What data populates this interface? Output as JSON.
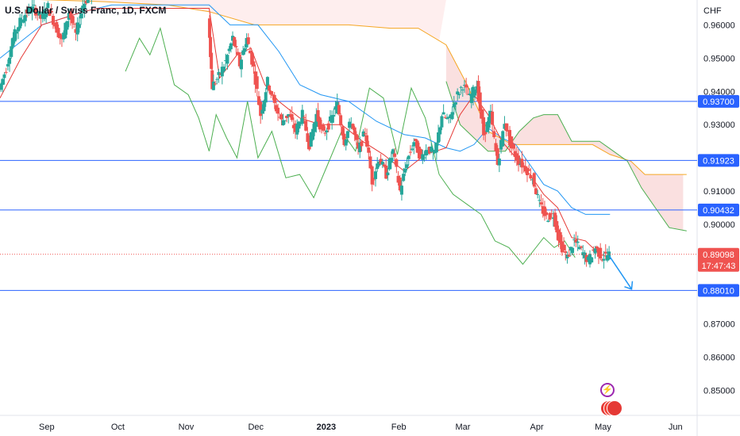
{
  "header": {
    "title": "U.S. Dollar / Swiss Franc, 1D, FXCM",
    "currency": "CHF"
  },
  "chart_data": {
    "type": "candlestick",
    "symbol": "U.S. Dollar / Swiss Franc",
    "timeframe": "1D",
    "source": "FXCM",
    "y_axis": {
      "unit": "CHF",
      "range": [
        0.8425,
        0.9675
      ],
      "ticks": [
        "0.96000",
        "0.95000",
        "0.94000",
        "0.93000",
        "0.91000",
        "0.90000",
        "0.87000",
        "0.86000",
        "0.85000"
      ]
    },
    "x_axis": {
      "ticks": [
        {
          "label": "Sep",
          "pos": 0.067
        },
        {
          "label": "Oct",
          "pos": 0.169
        },
        {
          "label": "Nov",
          "pos": 0.267
        },
        {
          "label": "Dec",
          "pos": 0.367
        },
        {
          "label": "2023",
          "pos": 0.468,
          "bold": true
        },
        {
          "label": "Feb",
          "pos": 0.572
        },
        {
          "label": "Mar",
          "pos": 0.664
        },
        {
          "label": "Apr",
          "pos": 0.77
        },
        {
          "label": "May",
          "pos": 0.865
        },
        {
          "label": "Jun",
          "pos": 0.969
        }
      ]
    },
    "horizontal_levels": [
      {
        "value": 0.937,
        "label": "0.93700"
      },
      {
        "value": 0.91923,
        "label": "0.91923"
      },
      {
        "value": 0.90432,
        "label": "0.90432"
      },
      {
        "value": 0.8801,
        "label": "0.88010"
      }
    ],
    "current_price": {
      "value": 0.89098,
      "label": "0.89098",
      "countdown": "17:47:43"
    },
    "forecast_arrow": {
      "from": [
        0.874,
        0.8905
      ],
      "to": [
        0.906,
        0.8805
      ]
    },
    "price_path": [
      [
        0.0,
        0.9405
      ],
      [
        0.01,
        0.947
      ],
      [
        0.02,
        0.956
      ],
      [
        0.03,
        0.961
      ],
      [
        0.04,
        0.964
      ],
      [
        0.05,
        0.965
      ],
      [
        0.06,
        0.962
      ],
      [
        0.07,
        0.9655
      ],
      [
        0.08,
        0.96
      ],
      [
        0.09,
        0.955
      ],
      [
        0.1,
        0.964
      ],
      [
        0.11,
        0.957
      ],
      [
        0.12,
        0.966
      ],
      [
        0.13,
        0.969
      ],
      [
        0.14,
        0.97
      ],
      [
        0.3,
        0.962
      ],
      [
        0.305,
        0.9415
      ],
      [
        0.315,
        0.9445
      ],
      [
        0.325,
        0.949
      ],
      [
        0.335,
        0.956
      ],
      [
        0.345,
        0.948
      ],
      [
        0.355,
        0.956
      ],
      [
        0.365,
        0.947
      ],
      [
        0.375,
        0.933
      ],
      [
        0.385,
        0.943
      ],
      [
        0.395,
        0.936
      ],
      [
        0.405,
        0.931
      ],
      [
        0.415,
        0.933
      ],
      [
        0.425,
        0.928
      ],
      [
        0.435,
        0.933
      ],
      [
        0.445,
        0.924
      ],
      [
        0.455,
        0.933
      ],
      [
        0.465,
        0.927
      ],
      [
        0.475,
        0.931
      ],
      [
        0.485,
        0.936
      ],
      [
        0.495,
        0.925
      ],
      [
        0.505,
        0.931
      ],
      [
        0.515,
        0.922
      ],
      [
        0.525,
        0.928
      ],
      [
        0.535,
        0.913
      ],
      [
        0.545,
        0.92
      ],
      [
        0.555,
        0.915
      ],
      [
        0.565,
        0.922
      ],
      [
        0.575,
        0.91
      ],
      [
        0.585,
        0.919
      ],
      [
        0.595,
        0.925
      ],
      [
        0.605,
        0.92
      ],
      [
        0.615,
        0.923
      ],
      [
        0.625,
        0.921
      ],
      [
        0.635,
        0.933
      ],
      [
        0.645,
        0.931
      ],
      [
        0.655,
        0.938
      ],
      [
        0.665,
        0.942
      ],
      [
        0.675,
        0.938
      ],
      [
        0.685,
        0.942
      ],
      [
        0.695,
        0.927
      ],
      [
        0.705,
        0.933
      ],
      [
        0.715,
        0.918
      ],
      [
        0.725,
        0.931
      ],
      [
        0.735,
        0.923
      ],
      [
        0.745,
        0.919
      ],
      [
        0.755,
        0.917
      ],
      [
        0.765,
        0.914
      ],
      [
        0.775,
        0.906
      ],
      [
        0.785,
        0.902
      ],
      [
        0.795,
        0.903
      ],
      [
        0.805,
        0.894
      ],
      [
        0.815,
        0.89
      ],
      [
        0.825,
        0.895
      ],
      [
        0.835,
        0.892
      ],
      [
        0.845,
        0.889
      ],
      [
        0.855,
        0.893
      ],
      [
        0.865,
        0.89
      ],
      [
        0.875,
        0.891
      ]
    ],
    "cloud": {
      "span_a": [
        [
          0.0,
          0.968
        ],
        [
          0.15,
          0.967
        ],
        [
          0.24,
          0.966
        ],
        [
          0.3,
          0.964
        ],
        [
          0.365,
          0.96
        ],
        [
          0.44,
          0.96
        ],
        [
          0.5,
          0.96
        ],
        [
          0.56,
          0.959
        ],
        [
          0.6,
          0.959
        ],
        [
          0.64,
          0.954
        ],
        [
          0.67,
          0.942
        ],
        [
          0.7,
          0.928
        ],
        [
          0.735,
          0.924
        ],
        [
          0.765,
          0.924
        ],
        [
          0.795,
          0.924
        ],
        [
          0.825,
          0.924
        ],
        [
          0.85,
          0.924
        ],
        [
          0.875,
          0.921
        ],
        [
          0.905,
          0.919
        ],
        [
          0.925,
          0.915
        ],
        [
          0.985,
          0.915
        ]
      ],
      "span_b": [
        [
          0.64,
          0.943
        ],
        [
          0.66,
          0.93
        ],
        [
          0.68,
          0.926
        ],
        [
          0.7,
          0.922
        ],
        [
          0.725,
          0.922
        ],
        [
          0.745,
          0.928
        ],
        [
          0.765,
          0.932
        ],
        [
          0.78,
          0.933
        ],
        [
          0.8,
          0.933
        ],
        [
          0.82,
          0.925
        ],
        [
          0.84,
          0.925
        ],
        [
          0.86,
          0.925
        ],
        [
          0.88,
          0.922
        ],
        [
          0.9,
          0.919
        ],
        [
          0.92,
          0.911
        ],
        [
          0.94,
          0.905
        ],
        [
          0.96,
          0.899
        ],
        [
          0.985,
          0.898
        ]
      ]
    },
    "conversion_line": [
      [
        0.0,
        0.938
      ],
      [
        0.03,
        0.95
      ],
      [
        0.06,
        0.96
      ],
      [
        0.09,
        0.962
      ],
      [
        0.12,
        0.964
      ],
      [
        0.14,
        0.965
      ],
      [
        0.3,
        0.965
      ],
      [
        0.315,
        0.944
      ],
      [
        0.34,
        0.951
      ],
      [
        0.36,
        0.953
      ],
      [
        0.38,
        0.942
      ],
      [
        0.4,
        0.937
      ],
      [
        0.43,
        0.932
      ],
      [
        0.46,
        0.93
      ],
      [
        0.49,
        0.93
      ],
      [
        0.52,
        0.925
      ],
      [
        0.55,
        0.921
      ],
      [
        0.58,
        0.916
      ],
      [
        0.61,
        0.921
      ],
      [
        0.64,
        0.923
      ],
      [
        0.66,
        0.933
      ],
      [
        0.68,
        0.939
      ],
      [
        0.7,
        0.933
      ],
      [
        0.72,
        0.925
      ],
      [
        0.74,
        0.92
      ],
      [
        0.76,
        0.915
      ],
      [
        0.78,
        0.909
      ],
      [
        0.8,
        0.905
      ],
      [
        0.82,
        0.896
      ],
      [
        0.84,
        0.895
      ],
      [
        0.86,
        0.891
      ],
      [
        0.875,
        0.89
      ]
    ],
    "base_line": [
      [
        0.0,
        0.95
      ],
      [
        0.06,
        0.96
      ],
      [
        0.12,
        0.964
      ],
      [
        0.16,
        0.966
      ],
      [
        0.3,
        0.966
      ],
      [
        0.33,
        0.96
      ],
      [
        0.37,
        0.96
      ],
      [
        0.4,
        0.952
      ],
      [
        0.43,
        0.942
      ],
      [
        0.46,
        0.939
      ],
      [
        0.5,
        0.937
      ],
      [
        0.54,
        0.931
      ],
      [
        0.58,
        0.927
      ],
      [
        0.61,
        0.926
      ],
      [
        0.64,
        0.923
      ],
      [
        0.66,
        0.922
      ],
      [
        0.68,
        0.924
      ],
      [
        0.7,
        0.929
      ],
      [
        0.72,
        0.926
      ],
      [
        0.74,
        0.924
      ],
      [
        0.76,
        0.918
      ],
      [
        0.78,
        0.912
      ],
      [
        0.8,
        0.91
      ],
      [
        0.82,
        0.905
      ],
      [
        0.84,
        0.903
      ],
      [
        0.86,
        0.903
      ],
      [
        0.875,
        0.903
      ]
    ],
    "lagging_span": [
      [
        0.18,
        0.946
      ],
      [
        0.2,
        0.956
      ],
      [
        0.215,
        0.951
      ],
      [
        0.23,
        0.959
      ],
      [
        0.25,
        0.942
      ],
      [
        0.27,
        0.939
      ],
      [
        0.285,
        0.932
      ],
      [
        0.3,
        0.922
      ],
      [
        0.31,
        0.933
      ],
      [
        0.325,
        0.926
      ],
      [
        0.34,
        0.92
      ],
      [
        0.355,
        0.937
      ],
      [
        0.37,
        0.92
      ],
      [
        0.39,
        0.928
      ],
      [
        0.41,
        0.914
      ],
      [
        0.43,
        0.915
      ],
      [
        0.45,
        0.908
      ],
      [
        0.47,
        0.918
      ],
      [
        0.49,
        0.928
      ],
      [
        0.51,
        0.922
      ],
      [
        0.53,
        0.941
      ],
      [
        0.55,
        0.938
      ],
      [
        0.57,
        0.921
      ],
      [
        0.59,
        0.941
      ],
      [
        0.61,
        0.932
      ],
      [
        0.63,
        0.915
      ],
      [
        0.65,
        0.909
      ],
      [
        0.67,
        0.906
      ],
      [
        0.69,
        0.903
      ],
      [
        0.71,
        0.895
      ],
      [
        0.73,
        0.893
      ],
      [
        0.75,
        0.888
      ],
      [
        0.765,
        0.892
      ],
      [
        0.78,
        0.896
      ],
      [
        0.795,
        0.893
      ],
      [
        0.81,
        0.895
      ],
      [
        0.825,
        0.89
      ]
    ]
  }
}
